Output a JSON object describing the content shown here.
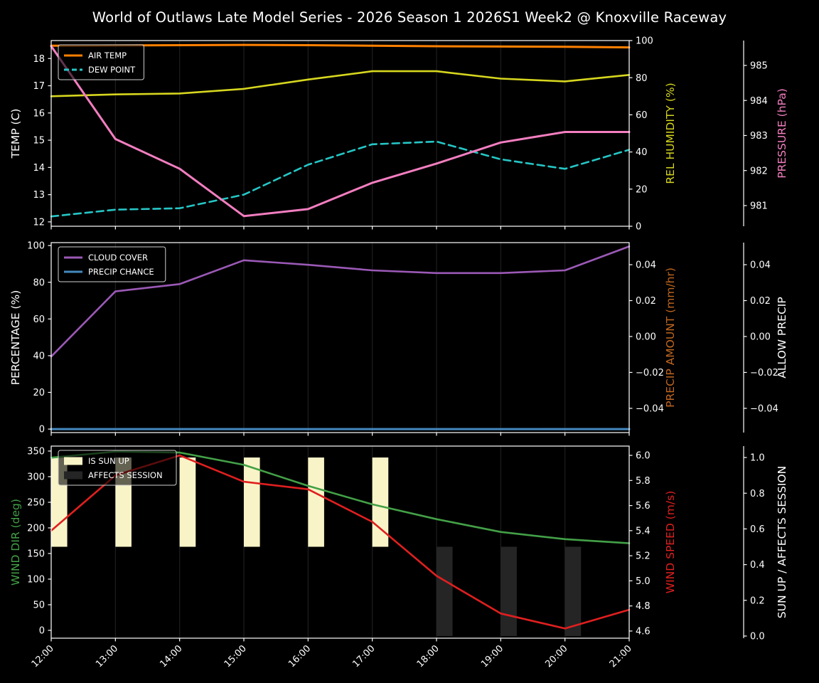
{
  "title": "World of Outlaws Late Model Series - 2026 Season 1 2026S1 Week2 @ Knoxville Raceway",
  "colors": {
    "background": "#000000",
    "axis": "#ffffff",
    "grid": "#1f1f1f",
    "air_temp": "#ff8000",
    "dew_point": "#26c6c6",
    "rel_humidity": "#d6d61f",
    "pressure": "#f37ec0",
    "cloud_cover": "#9b59b6",
    "precip_chance": "#4489c0",
    "precip_amount": "#c0661f",
    "allow_precip": "#ffffff",
    "wind_dir": "#43a047",
    "wind_speed": "#e01f1f",
    "is_sun_up": "#f9f4c7",
    "affects_session": "#252525",
    "legend_edge": "#cfcfcf"
  },
  "x_hours": [
    12,
    13,
    14,
    15,
    16,
    17,
    18,
    19,
    20,
    21
  ],
  "x_tick_labels": [
    "12:00",
    "13:00",
    "14:00",
    "15:00",
    "16:00",
    "17:00",
    "18:00",
    "19:00",
    "20:00",
    "21:00"
  ],
  "chart_data": [
    {
      "type": "line",
      "title": "",
      "axes": {
        "left": {
          "label": "TEMP (C)",
          "label_color": "#ffffff",
          "range": [
            11.84,
            18.66
          ],
          "tick_vals": [
            12,
            13,
            14,
            15,
            16,
            17,
            18
          ],
          "tick_labels": [
            "12",
            "13",
            "14",
            "15",
            "16",
            "17",
            "18"
          ]
        },
        "right_inner": {
          "label": "REL HUMIDITY (%)",
          "label_color": "#d6d61f",
          "range": [
            0,
            100
          ],
          "tick_vals": [
            0,
            20,
            40,
            60,
            80,
            100
          ],
          "tick_labels": [
            "0",
            "20",
            "40",
            "60",
            "80",
            "100"
          ]
        },
        "right_outer": {
          "label": "PRESSURE (hPa)",
          "label_color": "#f37ec0",
          "range": [
            980.41,
            985.71
          ],
          "tick_vals": [
            981,
            982,
            983,
            984,
            985
          ],
          "tick_labels": [
            "981",
            "982",
            "983",
            "984",
            "985"
          ]
        }
      },
      "series": [
        {
          "name": "AIR TEMP",
          "axis": "left",
          "color": "#ff8000",
          "dash": false,
          "width": 3,
          "values": [
            18.47,
            18.48,
            18.49,
            18.5,
            18.49,
            18.47,
            18.45,
            18.44,
            18.43,
            18.41
          ]
        },
        {
          "name": "DEW POINT",
          "axis": "left",
          "color": "#26c6c6",
          "dash": true,
          "width": 2.6,
          "values": [
            12.2,
            12.45,
            12.5,
            13.0,
            14.1,
            14.85,
            14.95,
            14.3,
            13.95,
            14.65
          ]
        },
        {
          "name": "REL HUMIDITY",
          "axis": "right_inner",
          "color": "#d6d61f",
          "dash": false,
          "width": 2.6,
          "values": [
            70,
            71,
            71.5,
            74,
            79,
            83.5,
            83.5,
            79.5,
            78,
            81.5
          ]
        },
        {
          "name": "PRESSURE",
          "axis": "right_outer",
          "color": "#f37ec0",
          "dash": false,
          "width": 3,
          "values": [
            985.55,
            982.9,
            982.05,
            980.7,
            980.9,
            981.65,
            982.2,
            982.8,
            983.1,
            983.1
          ]
        }
      ],
      "legend": [
        {
          "label": "AIR TEMP",
          "color": "#ff8000",
          "type": "line",
          "dash": false
        },
        {
          "label": "DEW POINT",
          "color": "#26c6c6",
          "type": "line",
          "dash": true
        }
      ]
    },
    {
      "type": "line",
      "title": "",
      "axes": {
        "left": {
          "label": "PERCENTAGE (%)",
          "label_color": "#ffffff",
          "range": [
            -1.9,
            101.6
          ],
          "tick_vals": [
            0,
            20,
            40,
            60,
            80,
            100
          ],
          "tick_labels": [
            "0",
            "20",
            "40",
            "60",
            "80",
            "100"
          ]
        },
        "right_inner": {
          "label": "PRECIP AMOUNT (mm/hr)",
          "label_color": "#c0661f",
          "range": [
            -0.0535,
            0.0523
          ],
          "tick_vals": [
            -0.04,
            -0.02,
            0,
            0.02,
            0.04
          ],
          "tick_labels": [
            "−0.04",
            "−0.02",
            "0.00",
            "0.02",
            "0.04"
          ]
        },
        "right_outer": {
          "label": "ALLOW PRECIP",
          "label_color": "#ffffff",
          "range": [
            -0.0535,
            0.0523
          ],
          "tick_vals": [
            -0.04,
            -0.02,
            0,
            0.02,
            0.04
          ],
          "tick_labels": [
            "−0.04",
            "−0.02",
            "0.00",
            "0.02",
            "0.04"
          ]
        }
      },
      "series": [
        {
          "name": "CLOUD COVER",
          "axis": "left",
          "color": "#9b59b6",
          "dash": false,
          "width": 2.6,
          "values": [
            39.5,
            75,
            79,
            92,
            89.5,
            86.5,
            85,
            85,
            86.5,
            99.5
          ]
        },
        {
          "name": "PRECIP CHANCE",
          "axis": "left",
          "color": "#4489c0",
          "dash": false,
          "width": 3,
          "values": [
            0,
            0,
            0,
            0,
            0,
            0,
            0,
            0,
            0,
            0
          ]
        }
      ],
      "legend": [
        {
          "label": "CLOUD COVER",
          "color": "#9b59b6",
          "type": "line",
          "dash": false
        },
        {
          "label": "PRECIP CHANCE",
          "color": "#4489c0",
          "type": "line",
          "dash": false
        }
      ]
    },
    {
      "type": "line",
      "title": "",
      "axes": {
        "left": {
          "label": "WIND DIR (deg)",
          "label_color": "#43a047",
          "range": [
            -15.3,
            359.7
          ],
          "tick_vals": [
            0,
            50,
            100,
            150,
            200,
            250,
            300,
            350
          ],
          "tick_labels": [
            "0",
            "50",
            "100",
            "150",
            "200",
            "250",
            "300",
            "350"
          ]
        },
        "right_inner": {
          "label": "WIND SPEED (m/s)",
          "label_color": "#e01f1f",
          "range": [
            4.543,
            6.074
          ],
          "tick_vals": [
            4.6,
            4.8,
            5.0,
            5.2,
            5.4,
            5.6,
            5.8,
            6.0
          ],
          "tick_labels": [
            "4.6",
            "4.8",
            "5.0",
            "5.2",
            "5.4",
            "5.6",
            "5.8",
            "6.0"
          ]
        },
        "right_outer": {
          "label": "SUN UP / AFFECTS SESSION",
          "label_color": "#ffffff",
          "range": [
            -0.012,
            1.064
          ],
          "tick_vals": [
            0,
            0.2,
            0.4,
            0.6,
            0.8,
            1.0
          ],
          "tick_labels": [
            "0.0",
            "0.2",
            "0.4",
            "0.6",
            "0.8",
            "1.0"
          ]
        }
      },
      "series": [
        {
          "name": "WIND DIR",
          "axis": "left",
          "color": "#43a047",
          "dash": false,
          "width": 2.6,
          "values": [
            337,
            349,
            347,
            323,
            282,
            246,
            217,
            192,
            178,
            170
          ]
        },
        {
          "name": "WIND SPEED",
          "axis": "right_inner",
          "color": "#e01f1f",
          "dash": false,
          "width": 2.6,
          "values": [
            5.4,
            5.84,
            6.0,
            5.79,
            5.73,
            5.47,
            5.04,
            4.74,
            4.62,
            4.77
          ]
        }
      ],
      "bars": [
        {
          "name": "IS SUN UP",
          "color": "#f9f4c7",
          "axis": "right_outer",
          "span": [
            0.5,
            1.0
          ],
          "hours": [
            12,
            13,
            14,
            15,
            16,
            17
          ],
          "bar_width_hours": 0.25
        },
        {
          "name": "AFFECTS SESSION",
          "color": "#252525",
          "axis": "right_outer",
          "span": [
            0.0,
            0.5
          ],
          "hours": [
            18,
            19,
            20
          ],
          "bar_width_hours": 0.25
        }
      ],
      "legend": [
        {
          "label": "IS SUN UP",
          "color": "#f9f4c7",
          "type": "patch"
        },
        {
          "label": "AFFECTS SESSION",
          "color": "#252525",
          "type": "patch"
        }
      ]
    }
  ]
}
